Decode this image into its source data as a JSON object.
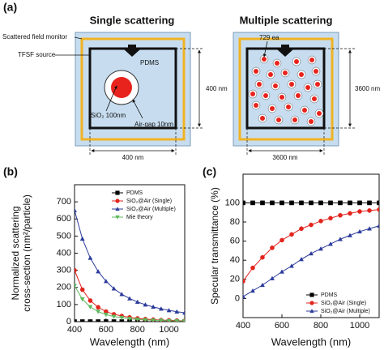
{
  "diagram": {
    "panel_label": "(a)",
    "left": {
      "title": "Single scattering",
      "monitor_label": "Scattered field monitor",
      "source_label": "TFSF source",
      "medium_label": "PDMS",
      "core_label": "SiO₂ 100nm",
      "gap_label": "Air-gap 10nm",
      "height_label": "400 nm",
      "width_label": "400 nm"
    },
    "right": {
      "title": "Multiple scattering",
      "count_label": "729 ea",
      "height_label": "3600 nm",
      "width_label": "3600 nm"
    }
  },
  "chart_data": [
    {
      "type": "line",
      "panel_label": "(b)",
      "x_label": "Wavelength (nm)",
      "y_label": [
        "Normalized scattering",
        "cross-section (nm²/particle)"
      ],
      "x": [
        400,
        450,
        500,
        550,
        600,
        650,
        700,
        750,
        800,
        850,
        900,
        950,
        1000,
        1050,
        1100
      ],
      "xlim": [
        400,
        1100
      ],
      "xticks": [
        400,
        600,
        800,
        1000
      ],
      "ylim": [
        0,
        800
      ],
      "yticks": [
        0,
        100,
        200,
        300,
        400,
        500,
        600,
        700
      ],
      "legend": "upper right",
      "series": [
        {
          "name": "PDMS",
          "color": "#000000",
          "marker": "square",
          "values": [
            0,
            0,
            0,
            0,
            0,
            0,
            0,
            0,
            0,
            0,
            0,
            0,
            0,
            0,
            0
          ]
        },
        {
          "name": "SiO₂@Air (Single)",
          "color": "#e3231c",
          "marker": "circle",
          "values": [
            300,
            187,
            123,
            84,
            59,
            43,
            33,
            25,
            19,
            15,
            12,
            9,
            8,
            6,
            5
          ]
        },
        {
          "name": "SiO₂@Air (Multiple)",
          "color": "#2b3a9a",
          "marker": "triangle",
          "values": [
            650,
            484,
            372,
            293,
            236,
            193,
            160,
            135,
            115,
            99,
            86,
            75,
            66,
            58,
            52
          ]
        },
        {
          "name": "Mie theory",
          "color": "#5cb85c",
          "marker": "triangle-down",
          "values": [
            210,
            131,
            86,
            59,
            41,
            30,
            23,
            17,
            13,
            10,
            8,
            7,
            5,
            4,
            4
          ]
        }
      ]
    },
    {
      "type": "line",
      "panel_label": "(c)",
      "x_label": "Wavelength (nm)",
      "y_label": [
        "Specular transmittance (%)"
      ],
      "x": [
        400,
        450,
        500,
        550,
        600,
        650,
        700,
        750,
        800,
        850,
        900,
        950,
        1000,
        1050,
        1100
      ],
      "xlim": [
        400,
        1100
      ],
      "xticks": [
        400,
        600,
        800,
        1000
      ],
      "ylim": [
        -20,
        130
      ],
      "yticks": [
        0,
        20,
        40,
        60,
        80,
        100
      ],
      "legend": "lower right",
      "series": [
        {
          "name": "PDMS",
          "color": "#000000",
          "marker": "square",
          "values": [
            100,
            100,
            100,
            100,
            100,
            100,
            100,
            100,
            100,
            100,
            100,
            100,
            100,
            100,
            100
          ]
        },
        {
          "name": "SiO₂@Air (Single)",
          "color": "#e3231c",
          "marker": "circle",
          "values": [
            18,
            32,
            43,
            53,
            61,
            67,
            73,
            77,
            81,
            84,
            87,
            89,
            91,
            92,
            93
          ]
        },
        {
          "name": "SiO₂@Air (Multiple)",
          "color": "#2b3a9a",
          "marker": "triangle",
          "values": [
            2,
            8,
            14,
            21,
            28,
            34,
            41,
            47,
            52,
            57,
            62,
            66,
            70,
            73,
            76
          ]
        }
      ]
    }
  ]
}
